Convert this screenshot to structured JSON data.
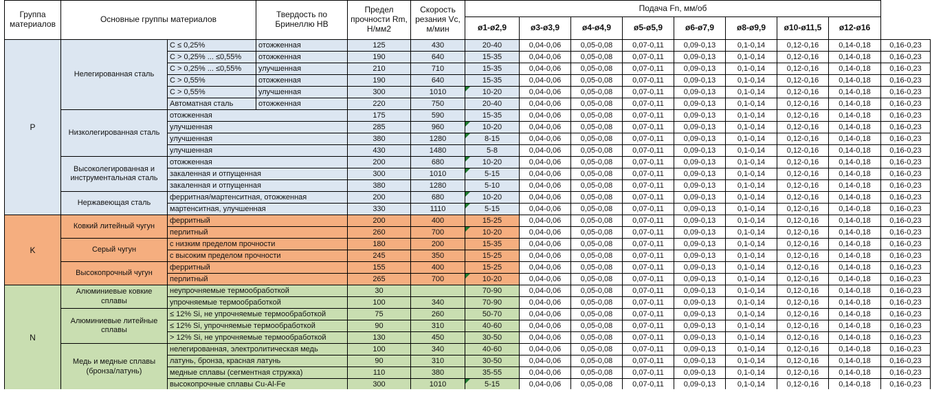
{
  "colors": {
    "p": "#dce6f1",
    "k": "#f5ae7f",
    "n": "#c9deb1",
    "triangle": "#1e7a2e"
  },
  "header": {
    "col_group": "Группа материалов",
    "col_main_groups": "Основные группы материалов",
    "col_hardness": "Твердость по Бринеллю HB",
    "col_strength": "Предел прочности Rm, Н/мм2",
    "col_speed": "Скорость резания Vc, м/мин",
    "feed_title": "Подача Fn, мм/об",
    "feed_cols": [
      "ø1-ø2,9",
      "ø3-ø3,9",
      "ø4-ø4,9",
      "ø5-ø5,9",
      "ø6-ø7,9",
      "ø8-ø9,9",
      "ø10-ø11,5",
      "ø12-ø16"
    ]
  },
  "group_spans": [
    {
      "code": "P",
      "rows": 15,
      "color": "p"
    },
    {
      "code": "K",
      "rows": 6,
      "color": "k"
    },
    {
      "code": "N",
      "rows": 9,
      "color": "n"
    }
  ],
  "subgroup_spans": [
    {
      "name": "Нелегированная сталь",
      "rows": 6
    },
    {
      "name": "Низколегированная сталь",
      "rows": 4
    },
    {
      "name": "Высоколегированная и инструментальная сталь",
      "rows": 3
    },
    {
      "name": "Нержавеющая сталь",
      "rows": 2
    },
    {
      "name": "Ковкий литейный чугун",
      "rows": 2
    },
    {
      "name": "Серый чугун",
      "rows": 2
    },
    {
      "name": "Высокопрочный чугун",
      "rows": 2
    },
    {
      "name": "Алюминиевые ковкие сплавы",
      "rows": 2
    },
    {
      "name": "Алюминиевые литейные сплавы",
      "rows": 3
    },
    {
      "name": "Медь и медные сплавы (бронза/латунь)",
      "rows": 4
    }
  ],
  "rows": [
    {
      "mat": "С ≤ 0,25%",
      "state": "отожженная",
      "hb": "125",
      "rm": "430",
      "vc": "20-40",
      "tri": false
    },
    {
      "mat": "С > 0,25% ... ≤0,55%",
      "state": "отожженная",
      "hb": "190",
      "rm": "640",
      "vc": "15-35",
      "tri": false
    },
    {
      "mat": "С > 0,25% ... ≤0,55%",
      "state": "улучшенная",
      "hb": "210",
      "rm": "710",
      "vc": "15-35",
      "tri": false
    },
    {
      "mat": "С > 0,55%",
      "state": "отожженная",
      "hb": "190",
      "rm": "640",
      "vc": "15-35",
      "tri": false
    },
    {
      "mat": "С > 0,55%",
      "state": "улучшенная",
      "hb": "300",
      "rm": "1010",
      "vc": "10-20",
      "tri": true
    },
    {
      "mat": "Автоматная сталь",
      "state": "отожженная",
      "hb": "220",
      "rm": "750",
      "vc": "20-40",
      "tri": false
    },
    {
      "mat": "отожженная",
      "state": null,
      "hb": "175",
      "rm": "590",
      "vc": "15-35",
      "tri": false
    },
    {
      "mat": "улучшенная",
      "state": null,
      "hb": "285",
      "rm": "960",
      "vc": "10-20",
      "tri": true
    },
    {
      "mat": "улучшенная",
      "state": null,
      "hb": "380",
      "rm": "1280",
      "vc": "8-15",
      "tri": true
    },
    {
      "mat": "улучшенная",
      "state": null,
      "hb": "430",
      "rm": "1480",
      "vc": "5-8",
      "tri": false
    },
    {
      "mat": "отожженная",
      "state": null,
      "hb": "200",
      "rm": "680",
      "vc": "10-20",
      "tri": true
    },
    {
      "mat": "закаленная и отпущенная",
      "state": null,
      "hb": "300",
      "rm": "1010",
      "vc": "5-15",
      "tri": true
    },
    {
      "mat": "закаленная и отпущенная",
      "state": null,
      "hb": "380",
      "rm": "1280",
      "vc": "5-10",
      "tri": false
    },
    {
      "mat": "ферритная/мартенситная, отожженная",
      "state": null,
      "hb": "200",
      "rm": "680",
      "vc": "10-20",
      "tri": true
    },
    {
      "mat": "мартенситная, улучшенная",
      "state": null,
      "hb": "330",
      "rm": "1110",
      "vc": "5-15",
      "tri": true
    },
    {
      "mat": "ферритный",
      "state": null,
      "hb": "200",
      "rm": "400",
      "vc": "15-25",
      "tri": false
    },
    {
      "mat": "перлитный",
      "state": null,
      "hb": "260",
      "rm": "700",
      "vc": "10-20",
      "tri": true
    },
    {
      "mat": "с низким пределом прочности",
      "state": null,
      "hb": "180",
      "rm": "200",
      "vc": "15-35",
      "tri": false
    },
    {
      "mat": "с высоким пределом прочности",
      "state": null,
      "hb": "245",
      "rm": "350",
      "vc": "15-25",
      "tri": false
    },
    {
      "mat": "ферритный",
      "state": null,
      "hb": "155",
      "rm": "400",
      "vc": "15-25",
      "tri": false
    },
    {
      "mat": "перлитный",
      "state": null,
      "hb": "265",
      "rm": "700",
      "vc": "10-20",
      "tri": true
    },
    {
      "mat": "неупрочняемые термообработкой",
      "state": null,
      "hb": "30",
      "rm": "",
      "vc": "70-90",
      "tri": false
    },
    {
      "mat": "упрочняемые термообработкой",
      "state": null,
      "hb": "100",
      "rm": "340",
      "vc": "70-90",
      "tri": false
    },
    {
      "mat": "≤ 12% Si, не упрочняемые термообработкой",
      "state": null,
      "hb": "75",
      "rm": "260",
      "vc": "50-70",
      "tri": false
    },
    {
      "mat": "≤ 12% Si, упрочняемые термообработкой",
      "state": null,
      "hb": "90",
      "rm": "310",
      "vc": "40-60",
      "tri": false
    },
    {
      "mat": "> 12% Si, не упрочняемые термообработкой",
      "state": null,
      "hb": "130",
      "rm": "450",
      "vc": "30-50",
      "tri": false
    },
    {
      "mat": "нелегированная, электролитическая медь",
      "state": null,
      "hb": "100",
      "rm": "340",
      "vc": "40-60",
      "tri": false
    },
    {
      "mat": "латунь, бронза, красная латунь",
      "state": null,
      "hb": "90",
      "rm": "310",
      "vc": "30-50",
      "tri": false
    },
    {
      "mat": "медные сплавы (сегментная стружка)",
      "state": null,
      "hb": "110",
      "rm": "380",
      "vc": "35-55",
      "tri": false
    },
    {
      "mat": "высокопрочные сплавы Cu-Al-Fe",
      "state": null,
      "hb": "300",
      "rm": "1010",
      "vc": "5-15",
      "tri": true
    }
  ],
  "feed_values": [
    "0,04-0,06",
    "0,05-0,08",
    "0,07-0,11",
    "0,09-0,13",
    "0,1-0,14",
    "0,12-0,16",
    "0,14-0,18",
    "0,16-0,23"
  ]
}
